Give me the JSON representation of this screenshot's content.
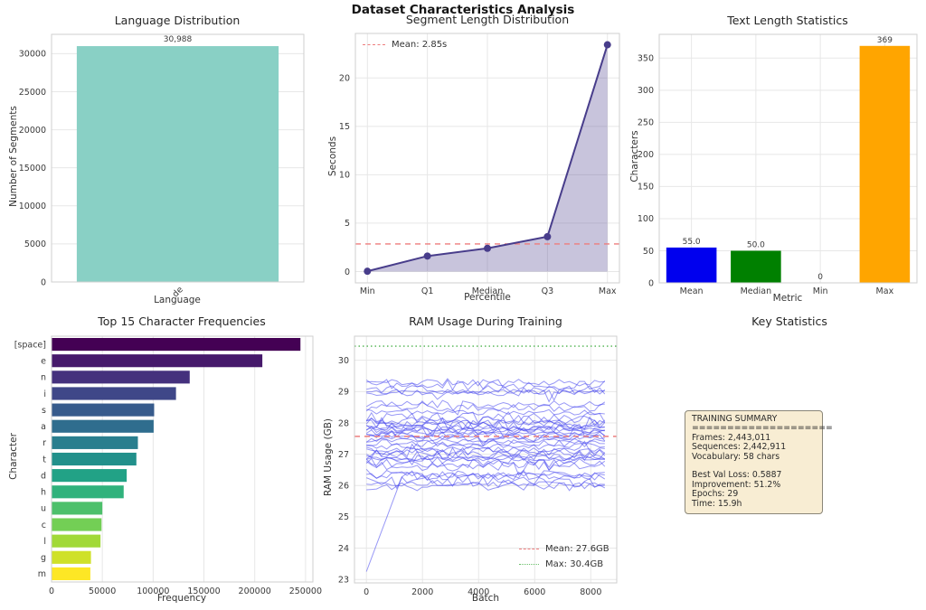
{
  "figure_title": "Dataset Characteristics Analysis",
  "chart_data": [
    {
      "type": "bar",
      "title": "Language Distribution",
      "xlabel": "Language",
      "ylabel": "Number of Segments",
      "categories": [
        "de"
      ],
      "values": [
        30988
      ],
      "value_labels": [
        "30,988"
      ],
      "bar_color": "#89d0c5",
      "ytick_values": [
        0,
        5000,
        10000,
        15000,
        20000,
        25000,
        30000
      ],
      "ytick_labels": [
        "0",
        "5000",
        "10000",
        "15000",
        "20000",
        "25000",
        "30000"
      ],
      "ylim": [
        0,
        32537
      ],
      "grid": "horizontal",
      "legend_position": "none"
    },
    {
      "type": "line",
      "title": "Segment Length Distribution",
      "xlabel": "Percentile",
      "ylabel": "Seconds",
      "categories": [
        "Min",
        "Q1",
        "Median",
        "Q3",
        "Max"
      ],
      "values": [
        0.03,
        1.6,
        2.4,
        3.6,
        23.43
      ],
      "line_color": "#483d8b",
      "fill_color": "rgba(72,61,139,0.30)",
      "marker": "circle",
      "mean_line": {
        "value": 2.85,
        "label": "Mean: 2.85s",
        "color": "#ee7d7d",
        "style": "dashed"
      },
      "ytick_values": [
        0,
        5,
        10,
        15,
        20
      ],
      "ytick_labels": [
        "0",
        "5",
        "10",
        "15",
        "20"
      ],
      "ylim": [
        -1.17,
        24.6
      ],
      "grid": "both",
      "legend_position": "upper-left"
    },
    {
      "type": "bar",
      "title": "Text Length Statistics",
      "xlabel": "Metric",
      "ylabel": "Characters",
      "categories": [
        "Mean",
        "Median",
        "Min",
        "Max"
      ],
      "values": [
        55,
        50,
        0,
        369
      ],
      "value_labels": [
        "55.0",
        "50.0",
        "0",
        "369"
      ],
      "colors": [
        "#0000ee",
        "#008000",
        "#cc0000",
        "#ffa500"
      ],
      "ytick_values": [
        0,
        50,
        100,
        150,
        200,
        250,
        300,
        350
      ],
      "ytick_labels": [
        "0",
        "50",
        "100",
        "150",
        "200",
        "250",
        "300",
        "350"
      ],
      "ylim": [
        0,
        387
      ],
      "grid": "both",
      "legend_position": "none"
    },
    {
      "type": "barh",
      "title": "Top 15 Character Frequencies",
      "xlabel": "Frequency",
      "ylabel": "Character",
      "categories": [
        "[space]",
        "e",
        "n",
        "i",
        "s",
        "a",
        "r",
        "t",
        "d",
        "h",
        "u",
        "c",
        "l",
        "g",
        "m"
      ],
      "values": [
        245000,
        207500,
        136000,
        122500,
        101000,
        100500,
        85000,
        83500,
        74000,
        71000,
        50000,
        49200,
        48200,
        38800,
        38200
      ],
      "colors": [
        "#440154",
        "#46196b",
        "#45317d",
        "#3f4788",
        "#375b8c",
        "#2f6d8e",
        "#297e8e",
        "#22908b",
        "#22a286",
        "#30b27c",
        "#4dc06b",
        "#73cf55",
        "#a1d938",
        "#cfe129",
        "#fde725"
      ],
      "colormap": "viridis",
      "xtick_values": [
        0,
        50000,
        100000,
        150000,
        200000,
        250000
      ],
      "xtick_labels": [
        "0",
        "50000",
        "100000",
        "150000",
        "200000",
        "250000"
      ],
      "xlim": [
        0,
        257250
      ],
      "grid": "vertical",
      "legend_position": "none"
    },
    {
      "type": "multiline",
      "title": "RAM Usage During Training",
      "xlabel": "Batch",
      "ylabel": "RAM Usage (GB)",
      "x_max": 8500,
      "line_color": "#4444ee",
      "line_opacity": 0.55,
      "levels": [
        29.3,
        29.22,
        29.05,
        29.0,
        28.97,
        28.6,
        28.48,
        28.35,
        28.18,
        28.08,
        28.0,
        27.95,
        27.9,
        27.85,
        27.8,
        27.76,
        27.72,
        27.68,
        27.62,
        27.55,
        27.5,
        27.42,
        27.35,
        27.25,
        27.15,
        27.08,
        27.0,
        26.95,
        26.9,
        26.85,
        26.78,
        26.7,
        26.63,
        26.35,
        26.3,
        26.12,
        26.05,
        25.97
      ],
      "ramp_line": {
        "start_value": 23.25,
        "end_value": 26.35,
        "rise_until_batch": 1300
      },
      "mean_line": {
        "value": 27.57,
        "label": "Mean: 27.6GB",
        "color": "#ee7d7d",
        "style": "dashed"
      },
      "max_line": {
        "value": 30.45,
        "label": "Max: 30.4GB",
        "color": "#69bf69",
        "style": "dotted"
      },
      "xtick_values": [
        0,
        2000,
        4000,
        6000,
        8000
      ],
      "xtick_labels": [
        "0",
        "2000",
        "4000",
        "6000",
        "8000"
      ],
      "ytick_values": [
        23,
        24,
        25,
        26,
        27,
        28,
        29,
        30
      ],
      "ytick_labels": [
        "23",
        "24",
        "25",
        "26",
        "27",
        "28",
        "29",
        "30"
      ],
      "ylim": [
        22.89,
        30.77
      ],
      "xlim": [
        -425,
        8925
      ],
      "seed": 11,
      "grid": "both",
      "legend_position": "lower-right"
    }
  ],
  "key_stats": {
    "title": "Key Statistics",
    "text": "TRAINING SUMMARY\n====================\nFrames: 2,443,011\nSequences: 2,442,911\nVocabulary: 58 chars\n\nBest Val Loss: 0.5887\nImprovement: 51.2%\nEpochs: 29\nTime: 15.9h"
  }
}
